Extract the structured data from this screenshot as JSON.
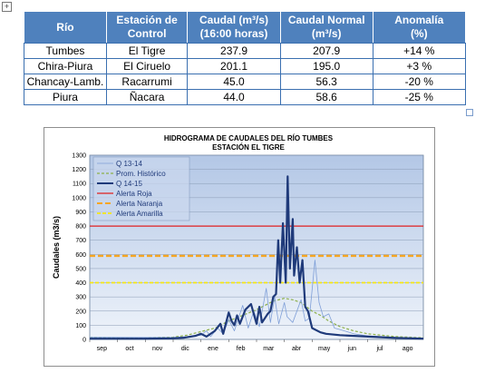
{
  "table": {
    "headers": [
      {
        "line1": "Río",
        "line2": ""
      },
      {
        "line1": "Estación de",
        "line2": "Control"
      },
      {
        "line1": "Caudal (m³/s)",
        "line2": "(16:00 horas)"
      },
      {
        "line1": "Caudal Normal",
        "line2": "(m³/s)"
      },
      {
        "line1": "Anomalía",
        "line2": "(%)"
      }
    ],
    "rows": [
      [
        "Tumbes",
        "El Tigre",
        "237.9",
        "207.9",
        "+14 %"
      ],
      [
        "Chira-Piura",
        "El Ciruelo",
        "201.1",
        "195.0",
        "+3 %"
      ],
      [
        "Chancay-Lamb.",
        "Racarrumi",
        "45.0",
        "56.3",
        "-20 %"
      ],
      [
        "Piura",
        "Ñacara",
        "44.0",
        "58.6",
        "-25 %"
      ]
    ]
  },
  "chart_data": {
    "type": "line",
    "title": "HIDROGRAMA DE CAUDALES  DEL RÍO TUMBES",
    "subtitle": "ESTACIÓN EL TIGRE",
    "ylabel": "Caudales (m3/s)",
    "xlabel": "",
    "ylim": [
      0,
      1300
    ],
    "yticks": [
      0,
      100,
      200,
      300,
      400,
      500,
      600,
      700,
      800,
      900,
      1000,
      1100,
      1200,
      1300
    ],
    "xlim": [
      0,
      12
    ],
    "xticks": [
      {
        "x": 0,
        "label": "sep"
      },
      {
        "x": 1,
        "label": "oct"
      },
      {
        "x": 2,
        "label": "nov"
      },
      {
        "x": 3,
        "label": "dic"
      },
      {
        "x": 4,
        "label": "ene"
      },
      {
        "x": 5,
        "label": "feb"
      },
      {
        "x": 6,
        "label": "mar"
      },
      {
        "x": 7,
        "label": "abr"
      },
      {
        "x": 8,
        "label": "may"
      },
      {
        "x": 9,
        "label": "jun"
      },
      {
        "x": 10,
        "label": "jul"
      },
      {
        "x": 11,
        "label": "ago"
      }
    ],
    "grid": true,
    "legend_position": "top-left",
    "series": [
      {
        "name": "Q 13-14",
        "color": "#7f9fd8",
        "style": "solid",
        "points": [
          [
            0,
            15
          ],
          [
            1,
            15
          ],
          [
            2,
            14
          ],
          [
            3,
            14
          ],
          [
            3.5,
            20
          ],
          [
            4,
            30
          ],
          [
            4.2,
            60
          ],
          [
            4.35,
            20
          ],
          [
            4.6,
            80
          ],
          [
            4.8,
            40
          ],
          [
            5,
            140
          ],
          [
            5.2,
            60
          ],
          [
            5.5,
            240
          ],
          [
            5.7,
            80
          ],
          [
            5.9,
            200
          ],
          [
            6.1,
            90
          ],
          [
            6.35,
            360
          ],
          [
            6.5,
            120
          ],
          [
            6.65,
            300
          ],
          [
            6.8,
            110
          ],
          [
            7,
            260
          ],
          [
            7.1,
            160
          ],
          [
            7.3,
            120
          ],
          [
            7.6,
            280
          ],
          [
            7.75,
            130
          ],
          [
            7.9,
            150
          ],
          [
            8.1,
            560
          ],
          [
            8.25,
            260
          ],
          [
            8.4,
            160
          ],
          [
            8.6,
            180
          ],
          [
            8.8,
            80
          ],
          [
            9,
            70
          ],
          [
            9.5,
            40
          ],
          [
            10,
            25
          ],
          [
            11,
            15
          ],
          [
            12,
            10
          ]
        ]
      },
      {
        "name": "Prom. Histórico",
        "color": "#8db04a",
        "style": "dashed",
        "points": [
          [
            0,
            15
          ],
          [
            1,
            12
          ],
          [
            2,
            12
          ],
          [
            3,
            16
          ],
          [
            3.5,
            30
          ],
          [
            4,
            55
          ],
          [
            4.5,
            80
          ],
          [
            5,
            130
          ],
          [
            5.5,
            170
          ],
          [
            6,
            210
          ],
          [
            6.3,
            240
          ],
          [
            6.6,
            270
          ],
          [
            7,
            290
          ],
          [
            7.3,
            280
          ],
          [
            7.6,
            260
          ],
          [
            8,
            200
          ],
          [
            8.3,
            170
          ],
          [
            8.6,
            130
          ],
          [
            9,
            90
          ],
          [
            9.5,
            60
          ],
          [
            10,
            40
          ],
          [
            11,
            20
          ],
          [
            12,
            12
          ]
        ]
      },
      {
        "name": "Q 14-15",
        "color": "#1f3a7a",
        "style": "solid",
        "points": [
          [
            0,
            5
          ],
          [
            1,
            5
          ],
          [
            2,
            5
          ],
          [
            3,
            8
          ],
          [
            3.4,
            12
          ],
          [
            3.8,
            25
          ],
          [
            4,
            40
          ],
          [
            4.2,
            20
          ],
          [
            4.5,
            60
          ],
          [
            4.7,
            110
          ],
          [
            4.8,
            40
          ],
          [
            5,
            190
          ],
          [
            5.1,
            130
          ],
          [
            5.2,
            100
          ],
          [
            5.3,
            170
          ],
          [
            5.4,
            110
          ],
          [
            5.6,
            210
          ],
          [
            5.8,
            250
          ],
          [
            6,
            110
          ],
          [
            6.1,
            230
          ],
          [
            6.2,
            120
          ],
          [
            6.4,
            180
          ],
          [
            6.5,
            200
          ],
          [
            6.6,
            300
          ],
          [
            6.7,
            320
          ],
          [
            6.78,
            700
          ],
          [
            6.85,
            400
          ],
          [
            6.95,
            820
          ],
          [
            7.05,
            400
          ],
          [
            7.12,
            1150
          ],
          [
            7.2,
            500
          ],
          [
            7.3,
            850
          ],
          [
            7.35,
            450
          ],
          [
            7.45,
            650
          ],
          [
            7.55,
            400
          ],
          [
            7.65,
            560
          ],
          [
            7.75,
            230
          ],
          [
            7.85,
            200
          ],
          [
            8,
            80
          ],
          [
            8.3,
            50
          ],
          [
            8.5,
            40
          ],
          [
            9,
            30
          ],
          [
            10,
            20
          ],
          [
            11,
            10
          ],
          [
            12,
            5
          ]
        ]
      },
      {
        "name": "Alerta Roja",
        "color": "#e02020",
        "style": "solid",
        "points": [
          [
            0,
            800
          ],
          [
            12,
            800
          ]
        ]
      },
      {
        "name": "Alerta Naranja",
        "color": "#f5a623",
        "style": "dashed",
        "points": [
          [
            0,
            590
          ],
          [
            12,
            590
          ]
        ]
      },
      {
        "name": "Alerta Amarilla",
        "color": "#f5e616",
        "style": "dashed",
        "points": [
          [
            0,
            400
          ],
          [
            12,
            400
          ]
        ]
      }
    ]
  }
}
